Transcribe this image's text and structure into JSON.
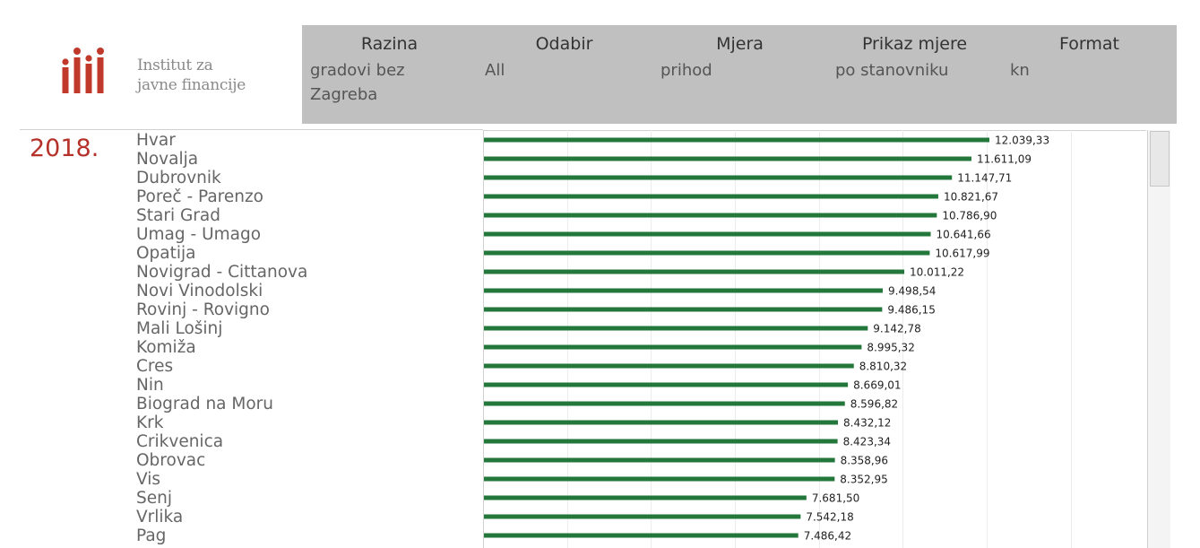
{
  "header": {
    "logo_icon": "ijf-logo-icon",
    "org_name_line1": "Institut za",
    "org_name_line2": "javne financije",
    "brand_color": "#c0392b"
  },
  "filters": [
    {
      "label": "Razina",
      "value": "gradovi bez Zagreba"
    },
    {
      "label": "Odabir",
      "value": "All"
    },
    {
      "label": "Mjera",
      "value": "prihod"
    },
    {
      "label": "Prikaz mjere",
      "value": "po stanovniku"
    },
    {
      "label": "Format",
      "value": "kn"
    }
  ],
  "year": "2018.",
  "chart_data": {
    "type": "bar",
    "orientation": "horizontal",
    "bar_color": "#24773b",
    "grid": true,
    "xlim": [
      0,
      14000
    ],
    "categories": [
      "Hvar",
      "Novalja",
      "Dubrovnik",
      "Poreč - Parenzo",
      "Stari Grad",
      "Umag - Umago",
      "Opatija",
      "Novigrad - Cittanova",
      "Novi Vinodolski",
      "Rovinj - Rovigno",
      "Mali Lošinj",
      "Komiža",
      "Cres",
      "Nin",
      "Biograd na Moru",
      "Krk",
      "Crikvenica",
      "Obrovac",
      "Vis",
      "Senj",
      "Vrlika",
      "Pag"
    ],
    "values": [
      12039.33,
      11611.09,
      11147.71,
      10821.67,
      10786.9,
      10641.66,
      10617.99,
      10011.22,
      9498.54,
      9486.15,
      9142.78,
      8995.32,
      8810.32,
      8669.01,
      8596.82,
      8432.12,
      8423.34,
      8358.96,
      8352.95,
      7681.5,
      7542.18,
      7486.42
    ],
    "value_labels": [
      "12.039,33",
      "11.611,09",
      "11.147,71",
      "10.821,67",
      "10.786,90",
      "10.641,66",
      "10.617,99",
      "10.011,22",
      "9.498,54",
      "9.486,15",
      "9.142,78",
      "8.995,32",
      "8.810,32",
      "8.669,01",
      "8.596,82",
      "8.432,12",
      "8.423,34",
      "8.358,96",
      "8.352,95",
      "7.681,50",
      "7.542,18",
      "7.486,42"
    ]
  }
}
